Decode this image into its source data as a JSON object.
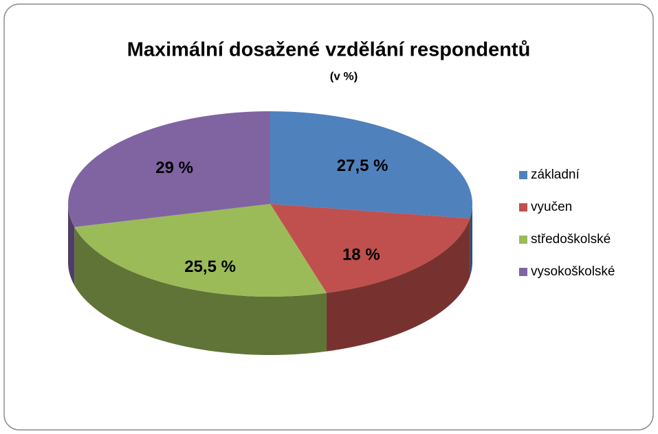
{
  "chart_data": {
    "type": "pie3d",
    "title": "Maximální dosažené vzdělání respondentů",
    "subtitle": "(v %)",
    "categories": [
      "základní",
      "vyučen",
      "středoškolské",
      "vysokoškolské"
    ],
    "values": [
      27.5,
      18,
      25.5,
      29
    ],
    "value_labels": [
      "27,5 %",
      "18 %",
      "25,5 %",
      "29 %"
    ],
    "colors": [
      "#4f81bd",
      "#c0504d",
      "#9bbb59",
      "#8064a2"
    ],
    "legend": "right"
  }
}
